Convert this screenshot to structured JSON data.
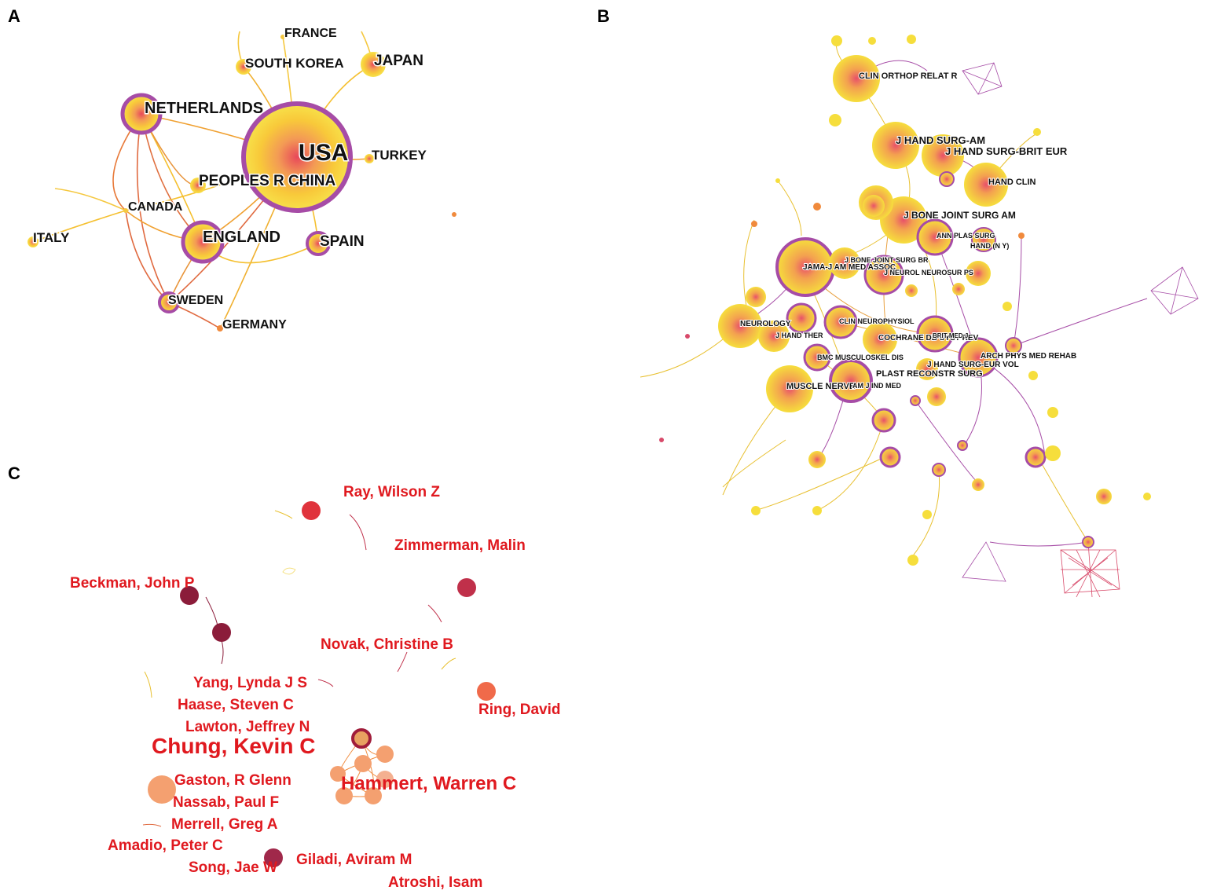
{
  "panels": {
    "a": {
      "letter": "A"
    },
    "b": {
      "letter": "B"
    },
    "c": {
      "letter": "C"
    }
  },
  "colors": {
    "purple_ring": "#a64ca6",
    "yellow": "#f5d428",
    "orange": "#f08a3c",
    "red_author": "#e0191f",
    "maroon": "#8b1c3a"
  },
  "countries": [
    {
      "id": "usa",
      "label": "USA",
      "size": "xl"
    },
    {
      "id": "peoples-r-china",
      "label": "PEOPLES R CHINA",
      "size": "m"
    },
    {
      "id": "netherlands",
      "label": "NETHERLANDS",
      "size": "l"
    },
    {
      "id": "england",
      "label": "ENGLAND",
      "size": "l"
    },
    {
      "id": "japan",
      "label": "JAPAN",
      "size": "m"
    },
    {
      "id": "south-korea",
      "label": "SOUTH KOREA",
      "size": "s"
    },
    {
      "id": "france",
      "label": "FRANCE",
      "size": "s"
    },
    {
      "id": "turkey",
      "label": "TURKEY",
      "size": "s"
    },
    {
      "id": "canada",
      "label": "CANADA",
      "size": "s"
    },
    {
      "id": "italy",
      "label": "ITALY",
      "size": "s"
    },
    {
      "id": "spain",
      "label": "SPAIN",
      "size": "m"
    },
    {
      "id": "sweden",
      "label": "SWEDEN",
      "size": "s"
    },
    {
      "id": "germany",
      "label": "GERMANY",
      "size": "s"
    }
  ],
  "journals": [
    "CLIN ORTHOP RELAT R",
    "J HAND SURG-AM",
    "J HAND SURG-BRIT EUR",
    "HAND CLIN",
    "J BONE JOINT SURG AM",
    "ANN PLAS SURG",
    "HAND (N Y)",
    "J BONE JOINT SURG BR",
    "JAMA-J AM MED ASSOC",
    "J NEUROL NEUROSUR PS",
    "CLIN NEUROPHYSIOL",
    "NEUROLOGY",
    "J HAND THER",
    "COCHRANE DB SYST REV",
    "BRIT MED J",
    "ARCH PHYS MED REHAB",
    "BMC MUSCULOSKEL DIS",
    "J HAND SURG-EUR VOL",
    "PLAST RECONSTR SURG",
    "MUSCLE NERVE",
    "AM J IND MED"
  ],
  "authors": [
    "Ray, Wilson Z",
    "Zimmerman, Malin",
    "Beckman, John P",
    "Novak, Christine B",
    "Yang, Lynda J S",
    "Haase, Steven C",
    "Lawton, Jeffrey N",
    "Ring, David",
    "Chung, Kevin C",
    "Hammert, Warren C",
    "Gaston, R Glenn",
    "Nassab, Paul F",
    "Merrell, Greg A",
    "Amadio, Peter C",
    "Song, Jae W",
    "Giladi, Aviram M",
    "Atroshi, Isam"
  ]
}
